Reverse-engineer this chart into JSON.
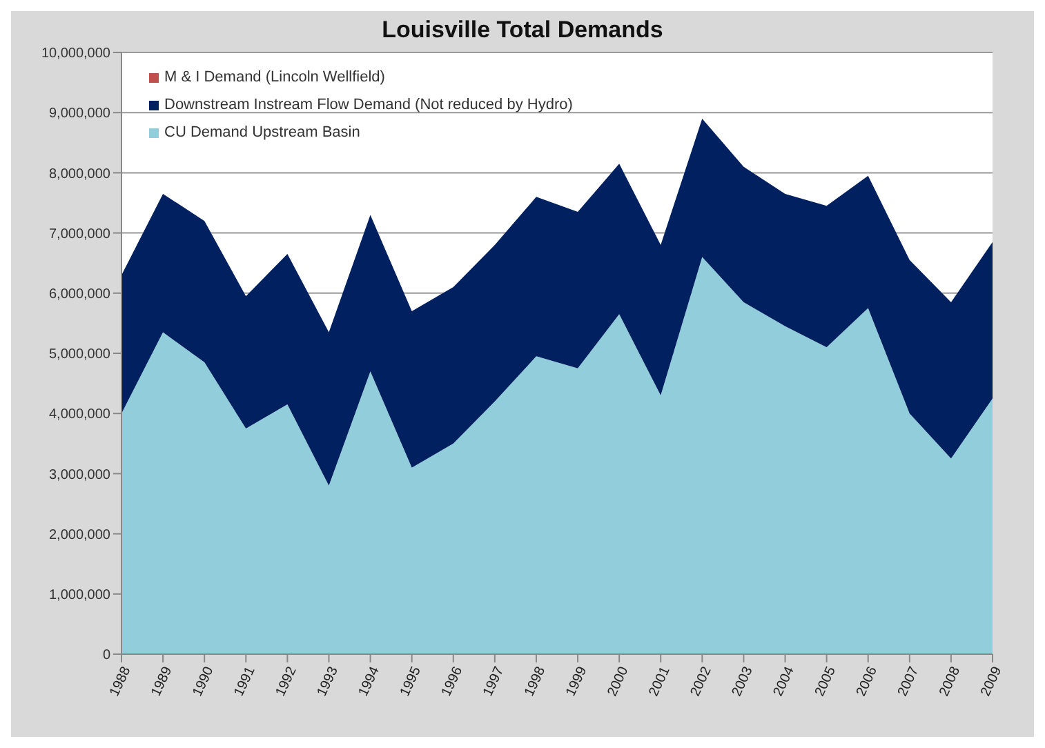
{
  "chart_data": {
    "type": "area",
    "title": "Louisville Total Demands",
    "stacked": true,
    "categories": [
      "1988",
      "1989",
      "1990",
      "1991",
      "1992",
      "1993",
      "1994",
      "1995",
      "1996",
      "1997",
      "1998",
      "1999",
      "2000",
      "2001",
      "2002",
      "2003",
      "2004",
      "2005",
      "2006",
      "2007",
      "2008",
      "2009"
    ],
    "series": [
      {
        "name": "CU Demand Upstream Basin",
        "color": "#92cddc",
        "values": [
          4000000,
          5350000,
          4850000,
          3750000,
          4150000,
          2800000,
          4700000,
          3100000,
          3500000,
          4200000,
          4950000,
          4750000,
          5650000,
          4300000,
          6600000,
          5850000,
          5450000,
          5100000,
          5750000,
          4000000,
          3250000,
          4250000
        ]
      },
      {
        "name": "Downstream Instream Flow Demand (Not reduced by Hydro)",
        "color": "#002060",
        "values": [
          2300000,
          2300000,
          2350000,
          2200000,
          2500000,
          2550000,
          2600000,
          2600000,
          2600000,
          2600000,
          2650000,
          2600000,
          2500000,
          2500000,
          2300000,
          2250000,
          2200000,
          2350000,
          2200000,
          2550000,
          2600000,
          2600000
        ]
      },
      {
        "name": "M & I Demand (Lincoln Wellfield)",
        "color": "#c0504d",
        "values": [
          null,
          null,
          null,
          null,
          null,
          null,
          null,
          null,
          null,
          null,
          null,
          null,
          null,
          null,
          null,
          null,
          null,
          null,
          null,
          null,
          null,
          null
        ]
      }
    ],
    "ylim": [
      0,
      10000000
    ],
    "yticks": [
      0,
      {
        "value": 1000000,
        "label": "1,000,000"
      },
      {
        "value": 2000000,
        "label": "2,000,000"
      },
      {
        "value": 3000000,
        "label": "3,000,000"
      },
      {
        "value": 4000000,
        "label": "4,000,000"
      },
      {
        "value": 5000000,
        "label": "5,000,000"
      },
      {
        "value": 6000000,
        "label": "6,000,000"
      },
      {
        "value": 7000000,
        "label": "7,000,000"
      },
      {
        "value": 8000000,
        "label": "8,000,000"
      },
      {
        "value": 9000000,
        "label": "9,000,000"
      },
      {
        "value": 10000000,
        "label": "10,000,000"
      }
    ],
    "grid": "y",
    "legend": "top left"
  }
}
